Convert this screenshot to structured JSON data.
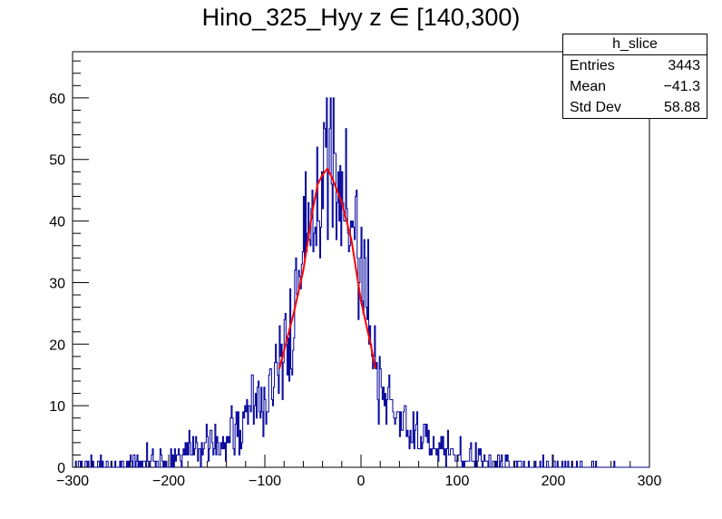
{
  "chart_data": {
    "type": "histogram",
    "title": "Hino_325_Hyy z  ∈ [140,300)",
    "xlabel": "",
    "ylabel": "",
    "xlim": [
      -300,
      300
    ],
    "ylim": [
      0,
      67.5
    ],
    "x_ticks": [
      -300,
      -200,
      -100,
      0,
      100,
      200,
      300
    ],
    "y_ticks": [
      0,
      10,
      20,
      30,
      40,
      50,
      60
    ],
    "grid": false,
    "bin_width": 1,
    "series": [
      {
        "kind": "histogram",
        "color": "#000099",
        "entries": 3443,
        "mean": -41.3,
        "std_dev": 58.88,
        "envelope": {
          "x": [
            -300,
            -250,
            -200,
            -175,
            -150,
            -125,
            -100,
            -90,
            -80,
            -70,
            -60,
            -50,
            -40,
            -30,
            -20,
            -10,
            0,
            10,
            20,
            30,
            50,
            75,
            100,
            125,
            150,
            200,
            250,
            300
          ],
          "y": [
            0.3,
            0.5,
            1.2,
            2.5,
            4.0,
            6.5,
            12,
            15,
            19,
            25,
            33,
            42,
            48,
            48,
            45,
            39,
            31,
            23,
            14,
            10,
            6,
            3.5,
            2,
            1,
            0.5,
            0.2,
            0.1,
            0
          ]
        }
      },
      {
        "kind": "fit",
        "color": "#ff0000",
        "x": [
          -85,
          -80,
          -70,
          -60,
          -50,
          -45,
          -40,
          -35,
          -30,
          -20,
          -10,
          0,
          10,
          15
        ],
        "y": [
          16,
          19,
          25,
          32,
          42,
          46,
          47.5,
          48.5,
          47,
          43,
          37,
          27,
          20,
          16
        ]
      }
    ]
  },
  "stats": {
    "name": "h_slice",
    "rows": [
      {
        "label": "Entries",
        "value": "3443"
      },
      {
        "label": "Mean",
        "value": "−41.3"
      },
      {
        "label": "Std Dev",
        "value": "58.88"
      }
    ]
  }
}
